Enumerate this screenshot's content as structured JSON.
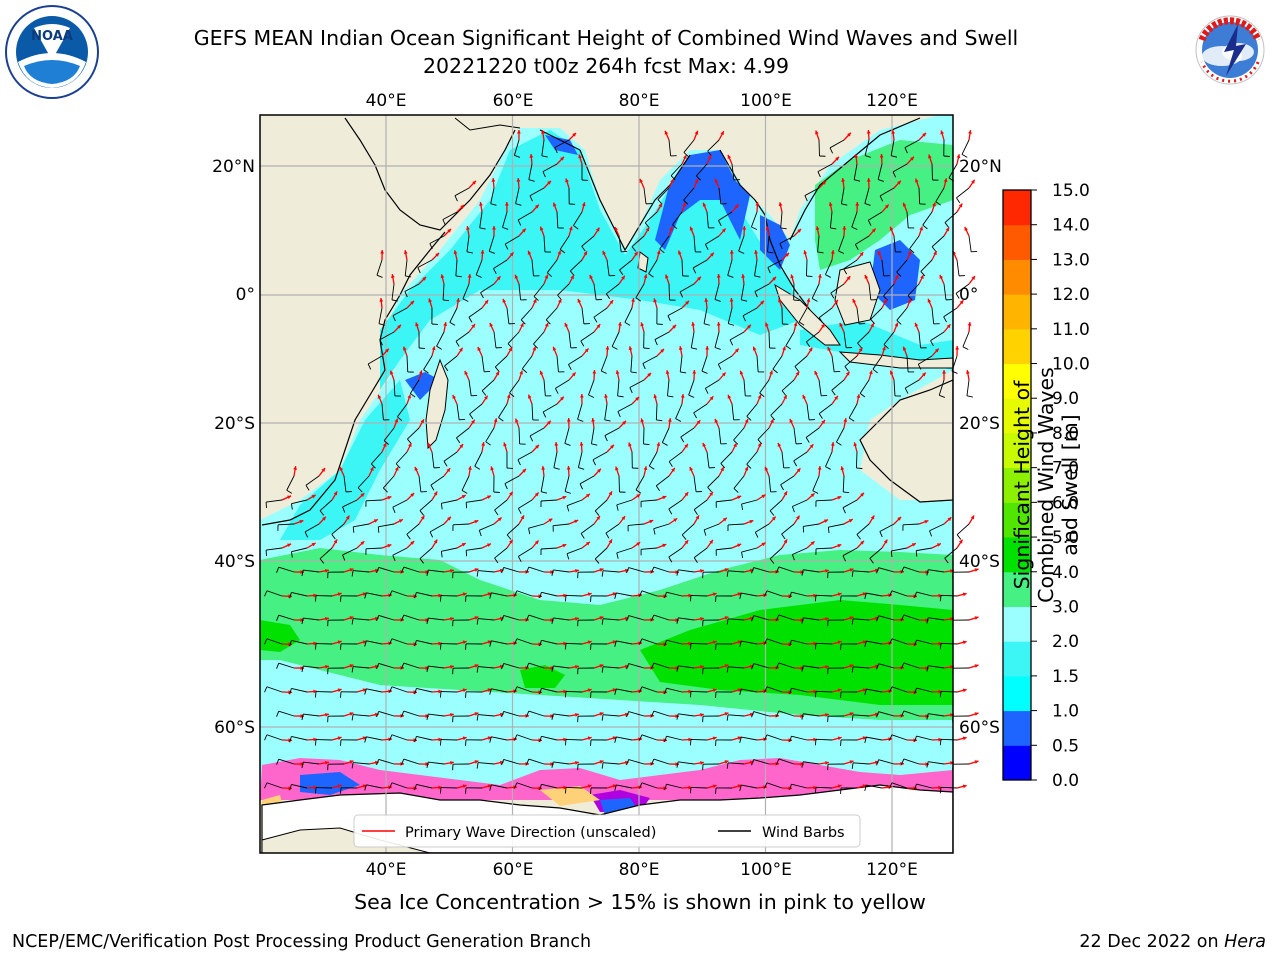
{
  "header": {
    "title_line1": "GEFS MEAN Indian Ocean Significant Height of Combined Wind Waves and Swell",
    "title_line2": "20221220 t00z 264h fcst   Max: 4.99"
  },
  "logos": {
    "left": {
      "icon": "noaa-logo-icon",
      "text": "NOAA",
      "ring_text": "NATIONAL OCEANIC AND ATMOSPHERIC ADMINISTRATION · U.S. DEPARTMENT OF COMMERCE"
    },
    "right": {
      "icon": "nws-logo-icon",
      "ring_text": "NATIONAL WEATHER SERVICE"
    }
  },
  "map": {
    "lon_top_labels": [
      "40°E",
      "60°E",
      "80°E",
      "100°E",
      "120°E"
    ],
    "lon_bottom_labels": [
      "40°E",
      "60°E",
      "80°E",
      "100°E",
      "120°E"
    ],
    "lat_left_labels": [
      "20°N",
      "0°",
      "20°S",
      "40°S",
      "60°S"
    ],
    "lat_right_labels": [
      "20°N",
      "0°",
      "20°S",
      "40°S",
      "60°S"
    ],
    "lon_values": [
      40,
      60,
      80,
      100,
      120
    ],
    "lat_values": [
      20,
      0,
      -20,
      -40,
      -60
    ],
    "land_color": "#efedd9",
    "legend": {
      "primary_wave_label": "Primary Wave Direction (unscaled)",
      "primary_wave_color": "#ff0000",
      "wind_barbs_label": "Wind Barbs",
      "wind_barbs_color": "#000000"
    }
  },
  "colorbar": {
    "label": "Significant Height of Combined Wind Waves and Swell [m]",
    "ticks": [
      "0.0",
      "0.5",
      "1.0",
      "1.5",
      "2.0",
      "3.0",
      "4.0",
      "5.0",
      "6.0",
      "7.0",
      "8.0",
      "9.0",
      "10.0",
      "11.0",
      "12.0",
      "13.0",
      "14.0",
      "15.0"
    ],
    "colors": [
      "#0000ff",
      "#1e64ff",
      "#00ffff",
      "#3cf5f5",
      "#9cffff",
      "#46f082",
      "#00e100",
      "#50e600",
      "#8cf000",
      "#c8fa00",
      "#e6fa00",
      "#ffff00",
      "#ffd200",
      "#ffb400",
      "#ff8c00",
      "#ff5a00",
      "#ff2800"
    ]
  },
  "footer": {
    "caption": "Sea Ice Concentration > 15% is shown in pink to yellow",
    "credit": "NCEP/EMC/Verification Post Processing Product Generation Branch",
    "date_prefix": "22 Dec 2022 on ",
    "date_host": "Hera"
  }
}
